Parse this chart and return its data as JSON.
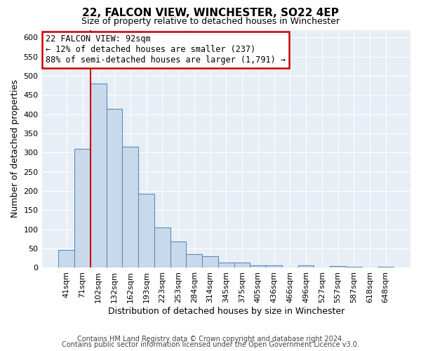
{
  "title": "22, FALCON VIEW, WINCHESTER, SO22 4EP",
  "subtitle": "Size of property relative to detached houses in Winchester",
  "xlabel": "Distribution of detached houses by size in Winchester",
  "ylabel": "Number of detached properties",
  "footnote1": "Contains HM Land Registry data © Crown copyright and database right 2024.",
  "footnote2": "Contains public sector information licensed under the Open Government Licence v3.0.",
  "bin_labels": [
    "41sqm",
    "71sqm",
    "102sqm",
    "132sqm",
    "162sqm",
    "193sqm",
    "223sqm",
    "253sqm",
    "284sqm",
    "314sqm",
    "345sqm",
    "375sqm",
    "405sqm",
    "436sqm",
    "466sqm",
    "496sqm",
    "527sqm",
    "557sqm",
    "587sqm",
    "618sqm",
    "648sqm"
  ],
  "bar_values": [
    47,
    310,
    480,
    415,
    315,
    192,
    105,
    68,
    35,
    30,
    14,
    14,
    7,
    7,
    0,
    7,
    0,
    5,
    3,
    0,
    2
  ],
  "bar_color": "#c9d9ec",
  "bar_edge_color": "#5b8db8",
  "vline_bin_index": 1.5,
  "vline_color": "#cc0000",
  "annotation_line1": "22 FALCON VIEW: 92sqm",
  "annotation_line2": "← 12% of detached houses are smaller (237)",
  "annotation_line3": "88% of semi-detached houses are larger (1,791) →",
  "annotation_box_color": "#ffffff",
  "annotation_box_edge": "#cc0000",
  "ylim": [
    0,
    620
  ],
  "yticks": [
    0,
    50,
    100,
    150,
    200,
    250,
    300,
    350,
    400,
    450,
    500,
    550,
    600
  ],
  "bg_color": "#e8eef5",
  "fig_bg_color": "#ffffff",
  "grid_color": "#ffffff",
  "title_fontsize": 11,
  "subtitle_fontsize": 9,
  "axis_label_fontsize": 9,
  "tick_fontsize": 8,
  "footnote_fontsize": 7
}
